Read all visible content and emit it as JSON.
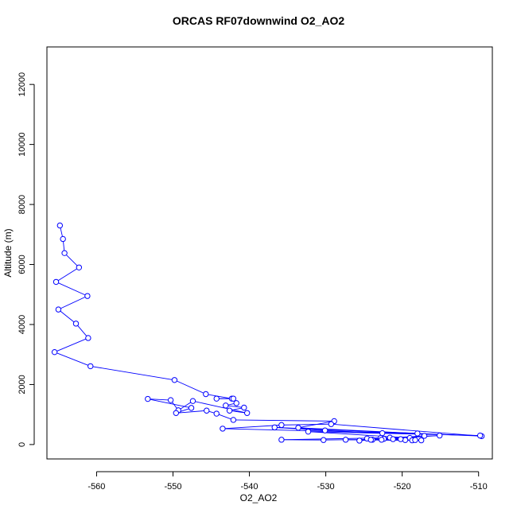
{
  "chart_data": {
    "type": "line",
    "title": "ORCAS RF07downwind O2_AO2",
    "xlabel": "O2_AO2",
    "ylabel": "Altitude (m)",
    "xlim": [
      -566.5,
      -508.2
    ],
    "ylim": [
      -480,
      13250
    ],
    "xticks": [
      -560,
      -550,
      -540,
      -530,
      -520,
      -510
    ],
    "yticks": [
      0,
      2000,
      4000,
      6000,
      8000,
      10000,
      12000
    ],
    "grid": false,
    "legend": "none",
    "marker": "open-circle",
    "color": "#0000ff",
    "series": [
      {
        "points": [
          [
            -564.8,
            7300
          ],
          [
            -564.4,
            6850
          ],
          [
            -564.2,
            6380
          ],
          [
            -562.3,
            5900
          ],
          [
            -565.3,
            5420
          ],
          [
            -561.2,
            4950
          ],
          [
            -565.0,
            4500
          ],
          [
            -562.7,
            4030
          ],
          [
            -561.1,
            3550
          ],
          [
            -565.5,
            3080
          ],
          [
            -560.8,
            2610
          ],
          [
            -549.8,
            2150
          ],
          [
            -545.7,
            1680
          ],
          [
            -542.3,
            1530
          ],
          [
            -544.3,
            1530
          ],
          [
            -542.1,
            1530
          ],
          [
            -541.7,
            1380
          ],
          [
            -543.1,
            1300
          ],
          [
            -540.7,
            1230
          ],
          [
            -542.6,
            1130
          ],
          [
            -540.3,
            1050
          ],
          [
            -547.4,
            1450
          ],
          [
            -549.3,
            1140
          ],
          [
            -550.3,
            1480
          ],
          [
            -553.3,
            1520
          ],
          [
            -547.6,
            1220
          ],
          [
            -549.6,
            1050
          ],
          [
            -545.6,
            1130
          ],
          [
            -544.3,
            1030
          ],
          [
            -542.1,
            820
          ],
          [
            -528.9,
            780
          ],
          [
            -533.6,
            560
          ],
          [
            -518.0,
            370
          ],
          [
            -543.5,
            530
          ],
          [
            -535.8,
            650
          ],
          [
            -529.3,
            680
          ],
          [
            -509.6,
            280
          ],
          [
            -536.7,
            570
          ],
          [
            -530.1,
            470
          ],
          [
            -522.6,
            380
          ],
          [
            -509.8,
            300
          ],
          [
            -532.3,
            430
          ],
          [
            -519.0,
            220
          ],
          [
            -525.6,
            130
          ],
          [
            -515.1,
            300
          ],
          [
            -521.6,
            230
          ],
          [
            -524.6,
            200
          ],
          [
            -518.7,
            140
          ],
          [
            -527.4,
            160
          ],
          [
            -517.5,
            140
          ],
          [
            -522.8,
            220
          ],
          [
            -535.8,
            160
          ],
          [
            -530.3,
            150
          ],
          [
            -521.2,
            180
          ],
          [
            -518.3,
            150
          ],
          [
            -523.9,
            160
          ],
          [
            -519.6,
            150
          ],
          [
            -522.4,
            190
          ],
          [
            -517.1,
            290
          ],
          [
            -524.1,
            160
          ],
          [
            -520.2,
            180
          ],
          [
            -522.7,
            160
          ]
        ]
      }
    ]
  }
}
